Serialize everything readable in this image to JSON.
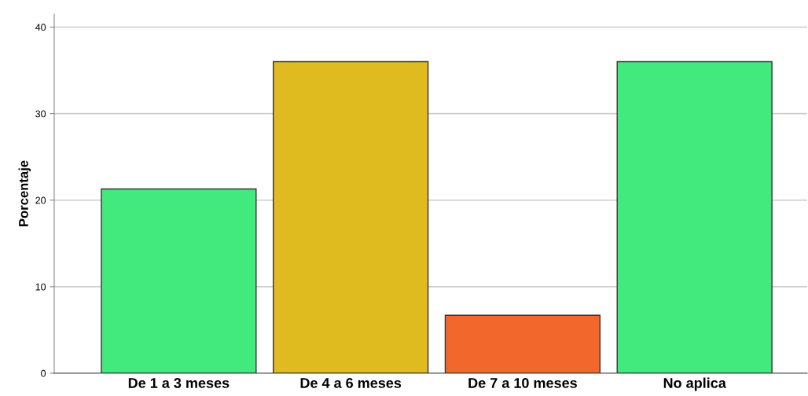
{
  "chart_data": {
    "type": "bar",
    "ylabel": "Porcentaje",
    "categories": [
      "De 1 a 3 meses",
      "De 4 a 6 meses",
      "De 7 a 10 meses",
      "No aplica"
    ],
    "values": [
      21.3,
      36.0,
      6.7,
      36.0
    ],
    "colors": [
      "#42ea7e",
      "#e0bb1f",
      "#f2682c",
      "#42ea7e"
    ],
    "ylim": [
      0,
      41.5
    ],
    "yticks": [
      0,
      10,
      20,
      30,
      40
    ],
    "grid": "y"
  }
}
